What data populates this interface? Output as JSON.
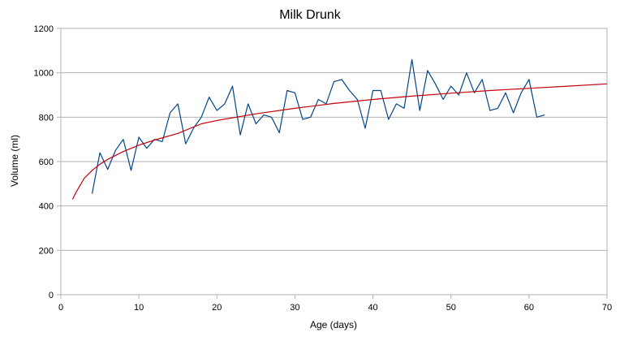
{
  "chart_data": {
    "type": "line",
    "title": "Milk Drunk",
    "xlabel": "Age (days)",
    "ylabel": "Volume (ml)",
    "xlim": [
      0,
      70
    ],
    "ylim": [
      0,
      1200
    ],
    "xticks": [
      0,
      10,
      20,
      30,
      40,
      50,
      60,
      70
    ],
    "yticks": [
      0,
      200,
      400,
      600,
      800,
      1000,
      1200
    ],
    "grid": "horizontal",
    "legend": "none",
    "series": [
      {
        "color": "#004586",
        "x": [
          4,
          5,
          6,
          7,
          8,
          9,
          10,
          11,
          12,
          13,
          14,
          15,
          16,
          17,
          18,
          19,
          20,
          21,
          22,
          23,
          24,
          25,
          26,
          27,
          28,
          29,
          30,
          31,
          32,
          33,
          34,
          35,
          36,
          37,
          38,
          39,
          40,
          41,
          42,
          43,
          44,
          45,
          46,
          47,
          48,
          49,
          50,
          51,
          52,
          53,
          54,
          55,
          56,
          57,
          58,
          59,
          60,
          61,
          62
        ],
        "y": [
          455,
          640,
          565,
          650,
          700,
          560,
          710,
          660,
          700,
          690,
          820,
          860,
          680,
          750,
          800,
          890,
          830,
          860,
          940,
          720,
          860,
          770,
          810,
          800,
          730,
          920,
          910,
          790,
          800,
          880,
          860,
          960,
          970,
          920,
          880,
          750,
          920,
          920,
          790,
          860,
          840,
          1060,
          830,
          1010,
          950,
          880,
          940,
          900,
          1000,
          910,
          970,
          830,
          840,
          910,
          820,
          910,
          970,
          800,
          810
        ]
      },
      {
        "color": "#c5000b",
        "x": [
          1.5,
          2,
          3,
          4,
          5,
          6,
          8,
          10,
          12,
          15,
          18,
          20,
          25,
          30,
          35,
          40,
          45,
          50,
          55,
          60,
          65,
          70
        ],
        "y": [
          430,
          465,
          525,
          560,
          588,
          610,
          645,
          674,
          697,
          727,
          770,
          785,
          815,
          840,
          862,
          880,
          895,
          908,
          920,
          930,
          940,
          950
        ]
      }
    ]
  }
}
